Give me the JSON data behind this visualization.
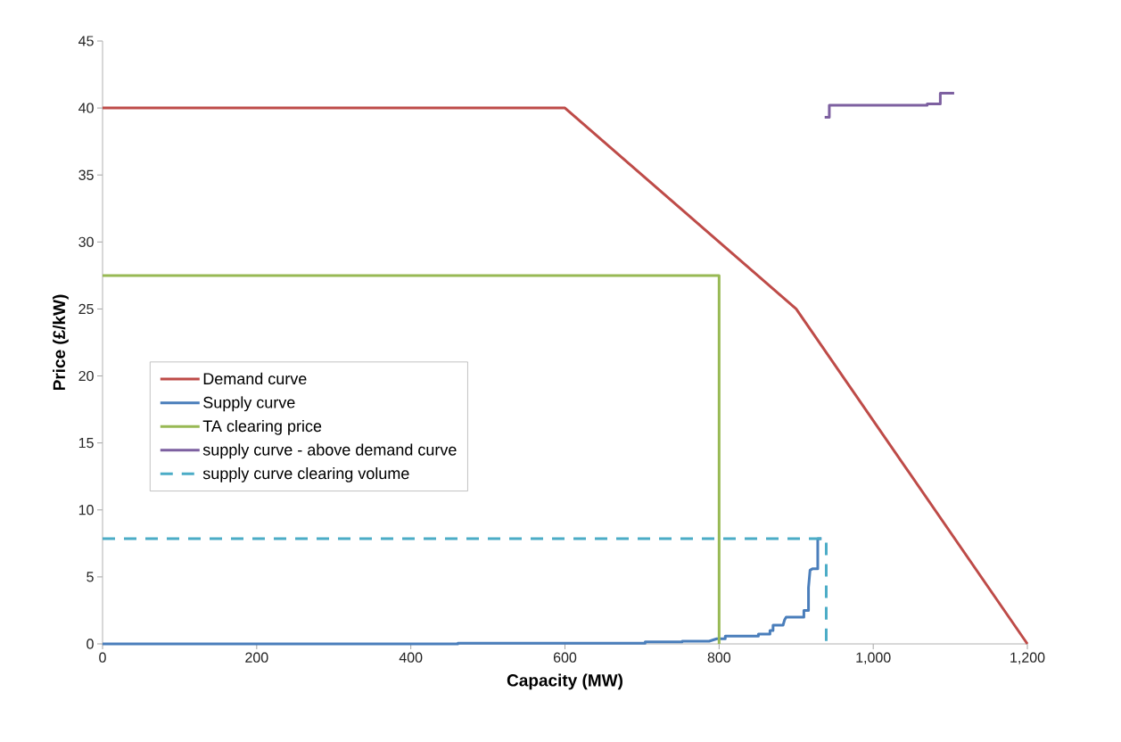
{
  "chart_data": {
    "type": "line",
    "xlabel": "Capacity (MW)",
    "ylabel": "Price (£/kW)",
    "xlim": [
      0,
      1200
    ],
    "ylim": [
      0,
      45
    ],
    "xticks": [
      0,
      200,
      400,
      600,
      800,
      {
        "value": 1000,
        "label": "1,000"
      },
      {
        "value": 1200,
        "label": "1,200"
      }
    ],
    "yticks": [
      0,
      5,
      10,
      15,
      20,
      25,
      30,
      35,
      40,
      45
    ],
    "grid": false,
    "legend": "left",
    "series": [
      {
        "name": "Demand curve",
        "color": "#be4b48",
        "x": [
          0,
          600,
          900,
          1200
        ],
        "values": [
          40,
          40,
          25,
          0
        ]
      },
      {
        "name": "Supply curve",
        "color": "#4a7ebb",
        "x": [
          0,
          461,
          461,
          704,
          704,
          752,
          752,
          787,
          797,
          808,
          808,
          851,
          851,
          866,
          866,
          870,
          870,
          883,
          885,
          887,
          910,
          910,
          916,
          916,
          918,
          921,
          928,
          928,
          933
        ],
        "values": [
          0,
          0,
          0.05,
          0.05,
          0.15,
          0.15,
          0.2,
          0.2,
          0.38,
          0.38,
          0.58,
          0.58,
          0.73,
          0.73,
          1.0,
          1.0,
          1.4,
          1.4,
          1.8,
          2.0,
          2.0,
          2.5,
          2.5,
          4.2,
          5.5,
          5.6,
          5.6,
          7.85,
          7.85
        ]
      },
      {
        "name": "TA clearing price",
        "color": "#98b954",
        "x": [
          0,
          800,
          800
        ],
        "values": [
          27.5,
          27.5,
          0
        ]
      },
      {
        "name": "supply curve - above demand curve",
        "color": "#7d60a0",
        "x": [
          937,
          943,
          943,
          1070,
          1070,
          1087,
          1087,
          1105
        ],
        "values": [
          39.3,
          39.3,
          40.2,
          40.2,
          40.3,
          40.3,
          41.1,
          41.1
        ]
      },
      {
        "name": "supply curve clearing volume",
        "color": "#4bacc6",
        "line_style": "dashed",
        "x": [
          0,
          939,
          939
        ],
        "values": [
          7.85,
          7.85,
          0
        ]
      }
    ]
  }
}
